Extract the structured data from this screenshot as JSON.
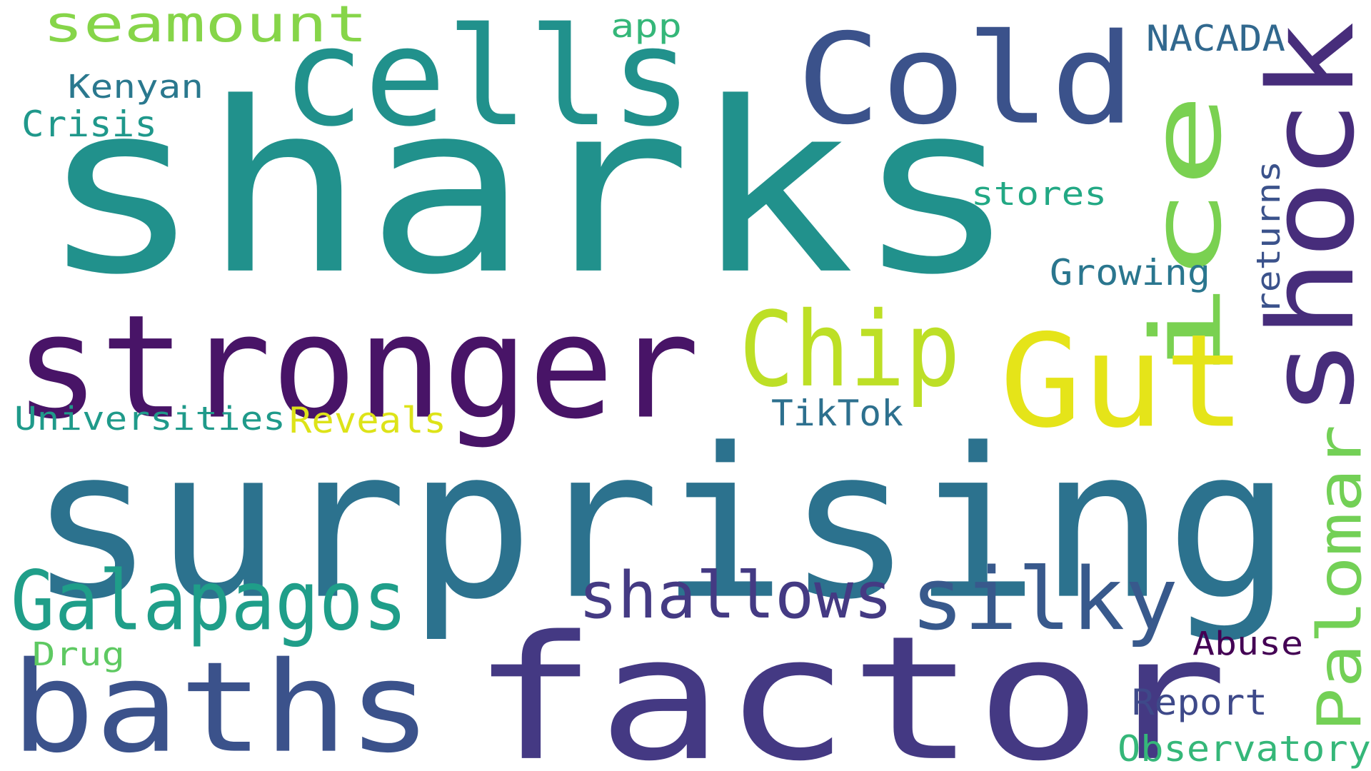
{
  "words": [
    {
      "text": "sharks",
      "color": "#21918c"
    },
    {
      "text": "surprising",
      "color": "#2c728e"
    },
    {
      "text": "factor",
      "color": "#443983"
    },
    {
      "text": "stronger",
      "color": "#481467"
    },
    {
      "text": "cells",
      "color": "#21918c"
    },
    {
      "text": "Cold",
      "color": "#3b528b"
    },
    {
      "text": "baths",
      "color": "#3b528b"
    },
    {
      "text": "shock",
      "color": "#472d7b"
    },
    {
      "text": "ice",
      "color": "#7ad151"
    },
    {
      "text": "Gut",
      "color": "#e5e419"
    },
    {
      "text": "Chip",
      "color": "#bddf26"
    },
    {
      "text": "Galapagos",
      "color": "#1f9e89"
    },
    {
      "text": "silky",
      "color": "#38598c"
    },
    {
      "text": "shallows",
      "color": "#443a83"
    },
    {
      "text": "Palomar",
      "color": "#73d056"
    },
    {
      "text": "seamount",
      "color": "#86d549"
    },
    {
      "text": "Kenyan",
      "color": "#2a788e"
    },
    {
      "text": "Crisis",
      "color": "#1f988b"
    },
    {
      "text": "app",
      "color": "#35b779"
    },
    {
      "text": "NACADA",
      "color": "#31688e"
    },
    {
      "text": "stores",
      "color": "#22a884"
    },
    {
      "text": "Growing",
      "color": "#2a768e"
    },
    {
      "text": "returns",
      "color": "#3b528b"
    },
    {
      "text": "Universities",
      "color": "#1f9a8a"
    },
    {
      "text": "Reveals",
      "color": "#dde318"
    },
    {
      "text": "TikTok",
      "color": "#2d708e"
    },
    {
      "text": "Drug",
      "color": "#5ec962"
    },
    {
      "text": "Abuse",
      "color": "#440154"
    },
    {
      "text": "Report",
      "color": "#3e4989"
    },
    {
      "text": "Observatory",
      "color": "#35b779"
    }
  ]
}
